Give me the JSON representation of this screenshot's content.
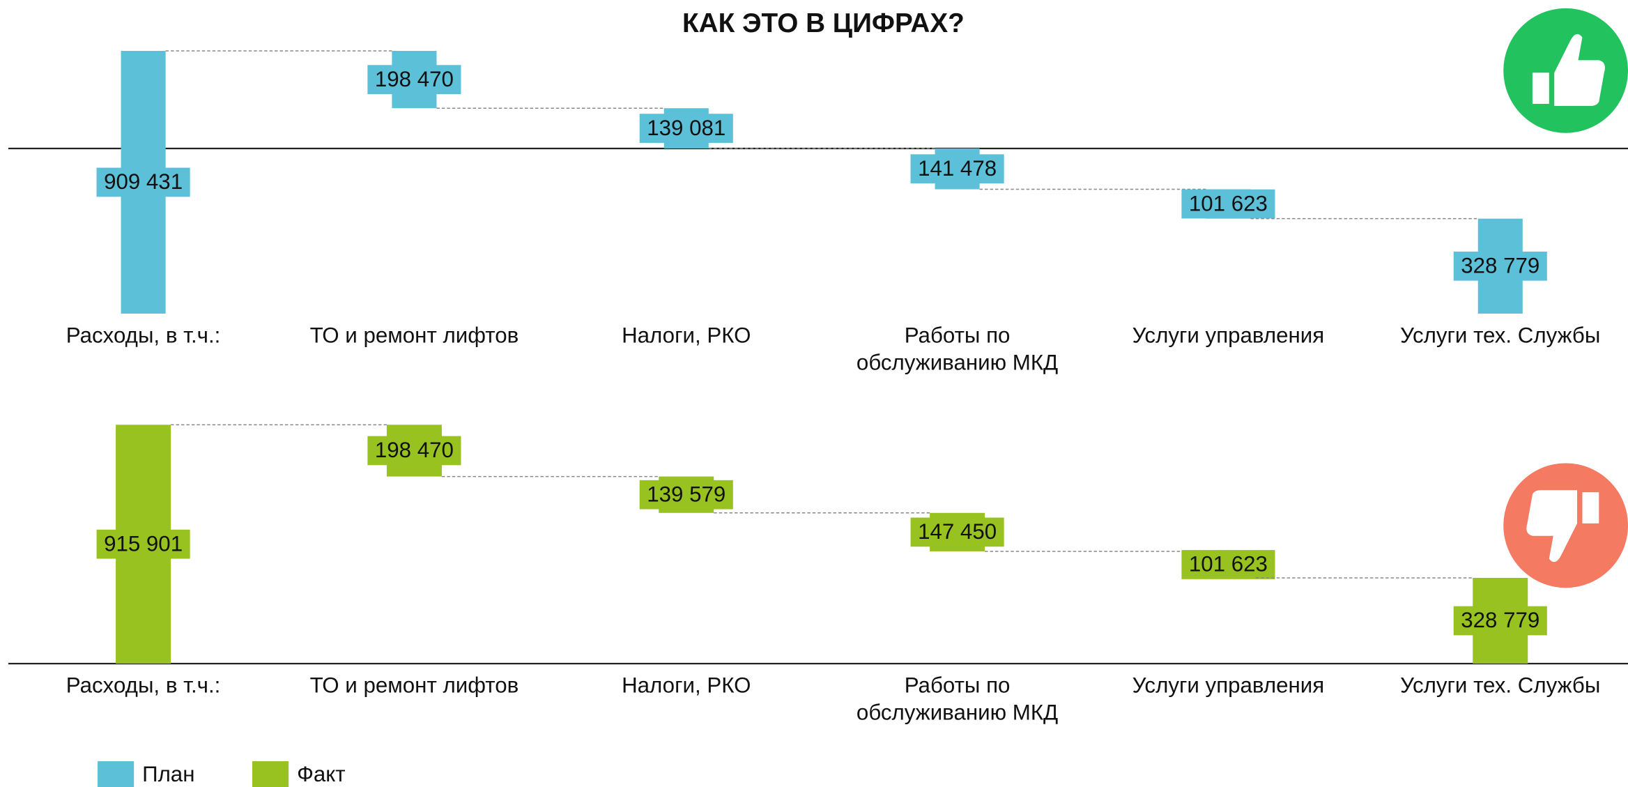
{
  "chart_data": [
    {
      "type": "waterfall",
      "title": "КАК ЭТО В ЦИФРАХ?",
      "categories": [
        "Расходы, в т.ч.:",
        "ТО и ремонт лифтов",
        "Налоги, РКО",
        "Работы по обслуживанию МКД",
        "Услуги управления",
        "Услуги тех. Службы"
      ],
      "series": [
        {
          "name": "План",
          "color": "#5bc0d8",
          "values": [
            909431,
            198470,
            139081,
            141478,
            101623,
            328779
          ],
          "value_labels": [
            "909 431",
            "198 470",
            "139 081",
            "141 478",
            "101 623",
            "328 779"
          ]
        }
      ]
    },
    {
      "type": "waterfall",
      "categories": [
        "Расходы, в т.ч.:",
        "ТО и ремонт лифтов",
        "Налоги, РКО",
        "Работы по обслуживанию МКД",
        "Услуги управления",
        "Услуги тех. Службы"
      ],
      "series": [
        {
          "name": "Факт",
          "color": "#97c21f",
          "values": [
            915901,
            198470,
            139579,
            147450,
            101623,
            328779
          ],
          "value_labels": [
            "915 901",
            "198 470",
            "139 579",
            "147 450",
            "101 623",
            "328 779"
          ]
        }
      ]
    }
  ]
}
